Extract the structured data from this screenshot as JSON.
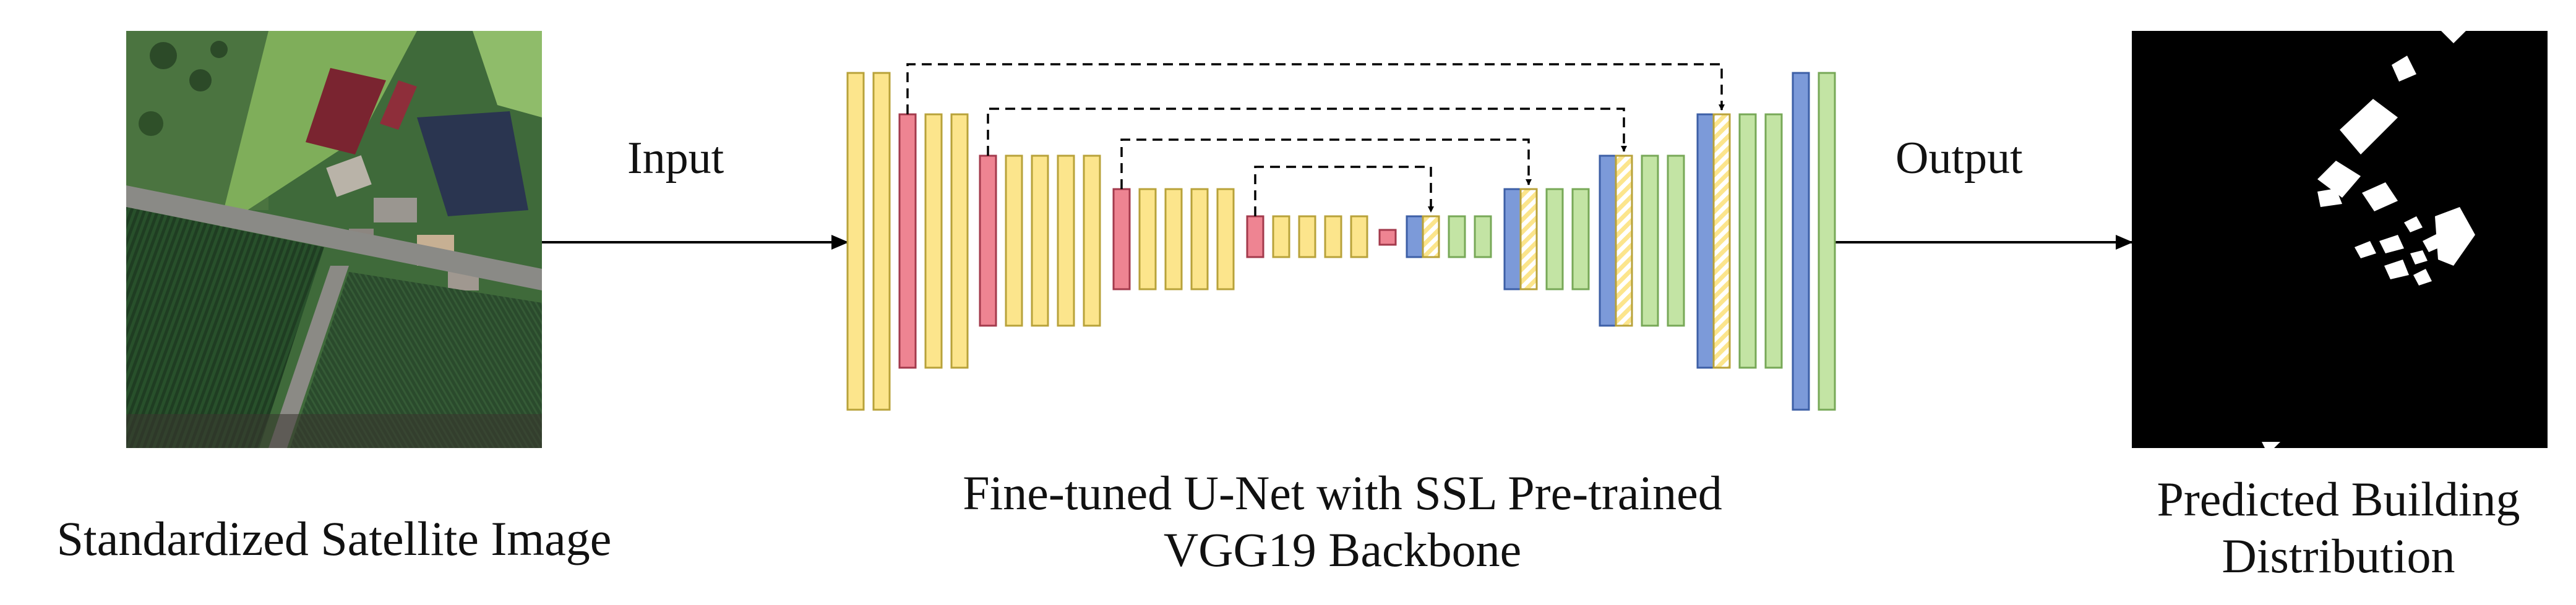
{
  "labels": {
    "input": "Input",
    "output": "Output"
  },
  "captions": {
    "satellite": "Standardized Satellite Image",
    "model_line1": "Fine-tuned U-Net with SSL Pre-trained",
    "model_line2": "VGG19 Backbone",
    "prediction_line1": "Predicted Building",
    "prediction_line2": "Distribution"
  },
  "colors": {
    "encoder_block": "#FCE58C",
    "encoder_border": "#B8A23A",
    "pooling_block": "#EE8492",
    "pooling_border": "#A33A4C",
    "upsample_block": "#7C9AD9",
    "upsample_border": "#3D5FA6",
    "decoder_block": "#C3E4A4",
    "decoder_border": "#77A857",
    "skip_hatched": "#FCE58C",
    "mask_background": "#000000",
    "mask_buildings": "#FFFFFF"
  },
  "icons": {
    "input_arrow": "right-arrow",
    "output_arrow": "right-arrow",
    "skip_connections": "dashed-arrow"
  }
}
